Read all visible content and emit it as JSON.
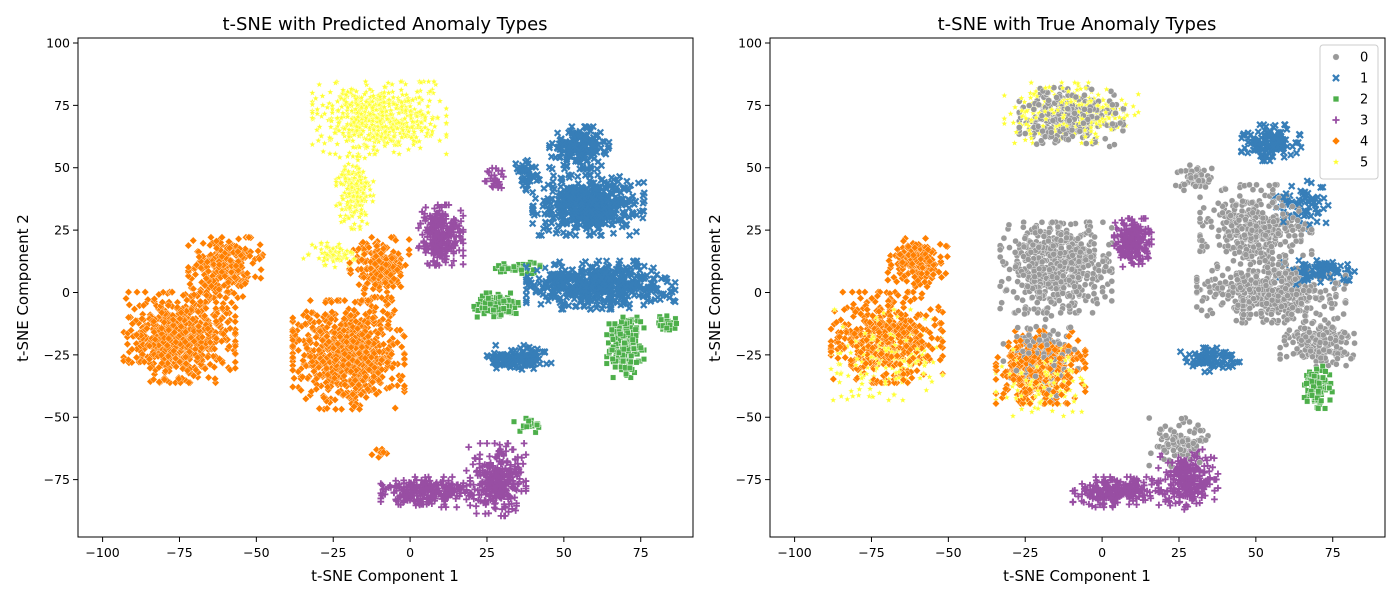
{
  "chart_data": [
    {
      "type": "scatter",
      "title": "t-SNE with Predicted Anomaly Types",
      "xlabel": "t-SNE Component 1",
      "ylabel": "t-SNE Component 2",
      "xlim": [
        -108,
        92
      ],
      "ylim": [
        -98,
        102
      ],
      "x_ticks": [
        -100,
        -75,
        -50,
        -25,
        0,
        25,
        50,
        75
      ],
      "y_ticks": [
        -75,
        -50,
        -25,
        0,
        25,
        50,
        75,
        100
      ],
      "grid": false,
      "legend": null,
      "series": [
        {
          "class": "0",
          "color": "#999999",
          "marker": "circle",
          "clusters": []
        },
        {
          "class": "1",
          "color": "#377eb8",
          "marker": "x",
          "clusters": [
            {
              "center": [
                55,
                58
              ],
              "spread": [
                8,
                7
              ],
              "count": 200
            },
            {
              "center": [
                58,
                35
              ],
              "spread": [
                15,
                10
              ],
              "count": 500
            },
            {
              "center": [
                62,
                3
              ],
              "spread": [
                20,
                8
              ],
              "count": 500
            },
            {
              "center": [
                35,
                -26
              ],
              "spread": [
                9,
                4
              ],
              "count": 130
            },
            {
              "center": [
                38,
                47
              ],
              "spread": [
                3,
                5
              ],
              "count": 40
            }
          ]
        },
        {
          "class": "2",
          "color": "#4daf4a",
          "marker": "square",
          "clusters": [
            {
              "center": [
                70,
                -22
              ],
              "spread": [
                5,
                10
              ],
              "count": 220
            },
            {
              "center": [
                28,
                -5
              ],
              "spread": [
                6,
                4
              ],
              "count": 120
            },
            {
              "center": [
                35,
                10
              ],
              "spread": [
                6,
                2
              ],
              "count": 40
            },
            {
              "center": [
                83,
                -13
              ],
              "spread": [
                3,
                3
              ],
              "count": 30
            },
            {
              "center": [
                38,
                -53
              ],
              "spread": [
                4,
                3
              ],
              "count": 20
            }
          ]
        },
        {
          "class": "3",
          "color": "#984ea3",
          "marker": "plus",
          "clusters": [
            {
              "center": [
                10,
                23
              ],
              "spread": [
                6,
                10
              ],
              "count": 250
            },
            {
              "center": [
                5,
                -80
              ],
              "spread": [
                12,
                5
              ],
              "count": 250
            },
            {
              "center": [
                28,
                -75
              ],
              "spread": [
                8,
                12
              ],
              "count": 300
            },
            {
              "center": [
                28,
                45
              ],
              "spread": [
                3,
                4
              ],
              "count": 30
            }
          ]
        },
        {
          "class": "4",
          "color": "#ff7f00",
          "marker": "diamond",
          "clusters": [
            {
              "center": [
                -75,
                -18
              ],
              "spread": [
                15,
                15
              ],
              "count": 700
            },
            {
              "center": [
                -60,
                10
              ],
              "spread": [
                10,
                10
              ],
              "count": 300
            },
            {
              "center": [
                -20,
                -25
              ],
              "spread": [
                15,
                18
              ],
              "count": 800
            },
            {
              "center": [
                -10,
                10
              ],
              "spread": [
                8,
                10
              ],
              "count": 200
            },
            {
              "center": [
                -10,
                -65
              ],
              "spread": [
                2,
                2
              ],
              "count": 10
            }
          ]
        },
        {
          "class": "5",
          "color": "#ffff33",
          "marker": "star",
          "clusters": [
            {
              "center": [
                -10,
                70
              ],
              "spread": [
                18,
                12
              ],
              "count": 600
            },
            {
              "center": [
                -18,
                40
              ],
              "spread": [
                5,
                12
              ],
              "count": 200
            },
            {
              "center": [
                -25,
                15
              ],
              "spread": [
                8,
                4
              ],
              "count": 80
            }
          ]
        }
      ]
    },
    {
      "type": "scatter",
      "title": "t-SNE with True Anomaly Types",
      "xlabel": "t-SNE Component 1",
      "ylabel": "t-SNE Component 2",
      "xlim": [
        -108,
        92
      ],
      "ylim": [
        -98,
        102
      ],
      "x_ticks": [
        -100,
        -75,
        -50,
        -25,
        0,
        25,
        50,
        75
      ],
      "y_ticks": [
        -75,
        -50,
        -25,
        0,
        25,
        50,
        75,
        100
      ],
      "grid": false,
      "legend": "top-right",
      "series": [
        {
          "class": "0",
          "color": "#999999",
          "marker": "circle",
          "clusters": [
            {
              "center": [
                -10,
                70
              ],
              "spread": [
                14,
                10
              ],
              "count": 300
            },
            {
              "center": [
                -15,
                10
              ],
              "spread": [
                15,
                15
              ],
              "count": 600
            },
            {
              "center": [
                50,
                25
              ],
              "spread": [
                15,
                15
              ],
              "count": 400
            },
            {
              "center": [
                55,
                0
              ],
              "spread": [
                20,
                10
              ],
              "count": 500
            },
            {
              "center": [
                70,
                -20
              ],
              "spread": [
                10,
                8
              ],
              "count": 200
            },
            {
              "center": [
                25,
                -60
              ],
              "spread": [
                8,
                8
              ],
              "count": 100
            },
            {
              "center": [
                30,
                45
              ],
              "spread": [
                5,
                5
              ],
              "count": 60
            },
            {
              "center": [
                -20,
                -25
              ],
              "spread": [
                10,
                15
              ],
              "count": 150
            }
          ]
        },
        {
          "class": "1",
          "color": "#377eb8",
          "marker": "x",
          "clusters": [
            {
              "center": [
                55,
                60
              ],
              "spread": [
                8,
                6
              ],
              "count": 120
            },
            {
              "center": [
                35,
                -27
              ],
              "spread": [
                8,
                4
              ],
              "count": 80
            },
            {
              "center": [
                70,
                8
              ],
              "spread": [
                10,
                4
              ],
              "count": 100
            },
            {
              "center": [
                65,
                35
              ],
              "spread": [
                8,
                8
              ],
              "count": 80
            }
          ]
        },
        {
          "class": "2",
          "color": "#4daf4a",
          "marker": "square",
          "clusters": [
            {
              "center": [
                70,
                -38
              ],
              "spread": [
                4,
                7
              ],
              "count": 100
            }
          ]
        },
        {
          "class": "3",
          "color": "#984ea3",
          "marker": "plus",
          "clusters": [
            {
              "center": [
                10,
                20
              ],
              "spread": [
                5,
                8
              ],
              "count": 200
            },
            {
              "center": [
                5,
                -80
              ],
              "spread": [
                12,
                5
              ],
              "count": 250
            },
            {
              "center": [
                28,
                -75
              ],
              "spread": [
                8,
                10
              ],
              "count": 250
            }
          ]
        },
        {
          "class": "4",
          "color": "#ff7f00",
          "marker": "diamond",
          "clusters": [
            {
              "center": [
                -70,
                -18
              ],
              "spread": [
                15,
                15
              ],
              "count": 500
            },
            {
              "center": [
                -60,
                12
              ],
              "spread": [
                8,
                8
              ],
              "count": 200
            },
            {
              "center": [
                -20,
                -30
              ],
              "spread": [
                12,
                12
              ],
              "count": 400
            }
          ]
        },
        {
          "class": "5",
          "color": "#ffff33",
          "marker": "star",
          "clusters": [
            {
              "center": [
                -10,
                72
              ],
              "spread": [
                18,
                10
              ],
              "count": 300
            },
            {
              "center": [
                -70,
                -25
              ],
              "spread": [
                15,
                15
              ],
              "count": 200
            },
            {
              "center": [
                -20,
                -35
              ],
              "spread": [
                12,
                12
              ],
              "count": 150
            }
          ]
        }
      ]
    }
  ]
}
